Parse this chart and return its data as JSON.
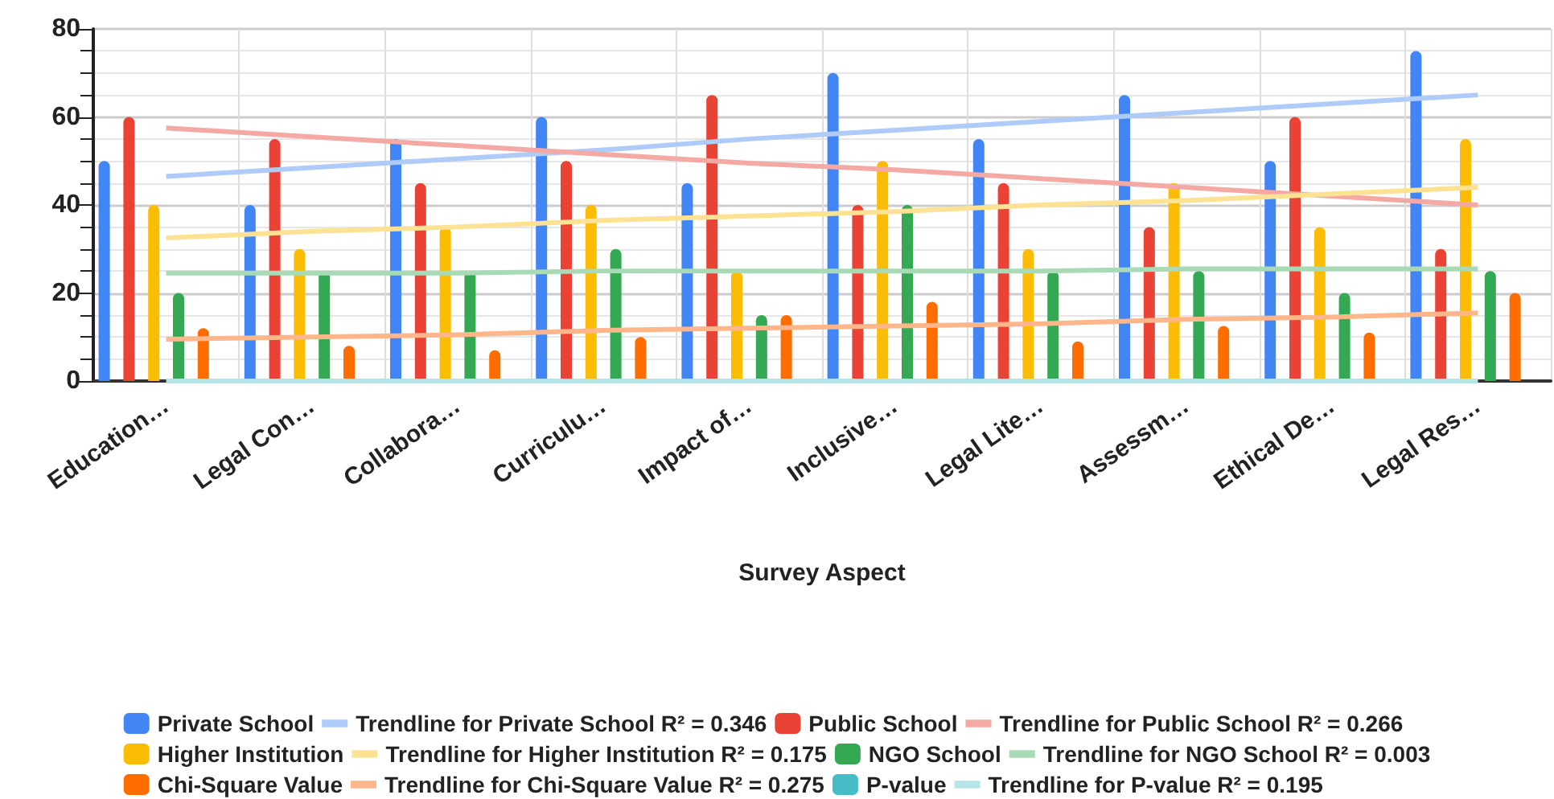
{
  "chart_data": {
    "type": "bar",
    "xlabel": "Survey Aspect",
    "categories": [
      "Education…",
      "Legal Con…",
      "Collabora…",
      "Curriculu…",
      "Impact of…",
      "Inclusive…",
      "Legal Lite…",
      "Assessm…",
      "Ethical De…",
      "Legal Res…"
    ],
    "series": [
      {
        "name": "Private School",
        "color": "#4285f4",
        "values": [
          50,
          40,
          55,
          60,
          45,
          70,
          55,
          65,
          50,
          75
        ]
      },
      {
        "name": "Trendline for Private School R² = 0.346",
        "type": "line",
        "color": "#aecbfa",
        "values": [
          46.5,
          48.5,
          50.5,
          52.5,
          55,
          57,
          59,
          61,
          63,
          65
        ]
      },
      {
        "name": "Public School",
        "color": "#ea4335",
        "values": [
          60,
          55,
          45,
          50,
          65,
          40,
          45,
          35,
          60,
          30
        ]
      },
      {
        "name": "Trendline for Public School R² = 0.266",
        "type": "line",
        "color": "#f4a9a4",
        "values": [
          57.5,
          55.5,
          53.5,
          51.5,
          49.5,
          48,
          46,
          44,
          42,
          40
        ]
      },
      {
        "name": "Higher Institution",
        "color": "#fbbc04",
        "values": [
          40,
          30,
          35,
          40,
          25,
          50,
          30,
          45,
          35,
          55
        ]
      },
      {
        "name": "Trendline for Higher Institution R² = 0.175",
        "type": "line",
        "color": "#fde293",
        "values": [
          32.5,
          34,
          35,
          36.5,
          37.5,
          38.5,
          40,
          41,
          42.5,
          44
        ]
      },
      {
        "name": "NGO School",
        "color": "#34a853",
        "values": [
          20,
          25,
          25,
          30,
          15,
          40,
          25,
          25,
          20,
          25
        ]
      },
      {
        "name": "Trendline for NGO School R² = 0.003",
        "type": "line",
        "color": "#a8dab5",
        "values": [
          24.5,
          24.5,
          24.5,
          25,
          25,
          25,
          25,
          25.5,
          25.5,
          25.5
        ]
      },
      {
        "name": "Chi-Square Value",
        "color": "#ff6d01",
        "values": [
          12,
          8,
          7,
          10,
          15,
          18,
          9,
          12.5,
          11,
          20
        ]
      },
      {
        "name": "Trendline for Chi-Square Value R² = 0.275",
        "type": "line",
        "color": "#ffb68a",
        "values": [
          9.5,
          10,
          10.5,
          11.5,
          12,
          12.5,
          13,
          14,
          14.5,
          15.5
        ]
      },
      {
        "name": "P-value",
        "color": "#46bdc6",
        "values": [
          0,
          0,
          0,
          0,
          0,
          0,
          0,
          0,
          0,
          0
        ]
      },
      {
        "name": "Trendline for P-value R² = 0.195",
        "type": "line",
        "color": "#b5e5e9",
        "values": [
          0,
          0,
          0,
          0,
          0,
          0,
          0,
          0,
          0,
          0
        ]
      }
    ],
    "ylim": [
      0,
      80
    ],
    "yticks": [
      0,
      20,
      40,
      60,
      80
    ],
    "grid": true,
    "legend": "bottom",
    "marker": "none"
  }
}
